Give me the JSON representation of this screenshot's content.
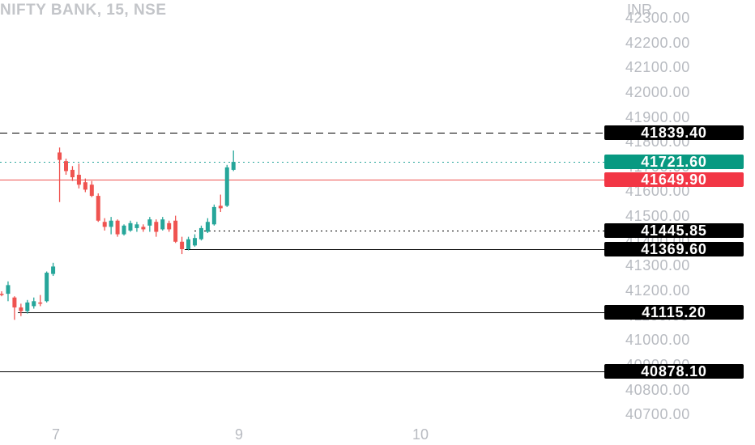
{
  "header": {
    "title": "NIFTY BANK, 15, NSE",
    "currency": "INR"
  },
  "colors": {
    "up": "#26a69a",
    "down": "#ef5350",
    "grid_text": "#b8bbc1",
    "label_dark": "#000000",
    "label_up": "#089981",
    "label_down": "#f23645"
  },
  "chart_data": {
    "type": "candlestick",
    "y_axis": {
      "range": [
        40650,
        42340
      ],
      "ticks": [
        "42300.00",
        "42200.00",
        "42100.00",
        "42000.00",
        "41900.00",
        "41800.00",
        "41700.00",
        "41600.00",
        "41500.00",
        "41400.00",
        "41300.00",
        "41200.00",
        "41100.00",
        "41000.00",
        "40900.00",
        "40800.00",
        "40700.00"
      ]
    },
    "x_axis": {
      "ticks": [
        "7",
        "9",
        "10"
      ]
    },
    "levels": [
      {
        "value": "41839.40",
        "style": "dashed",
        "label_color": "dark"
      },
      {
        "value": "41721.60",
        "style": "dotted-up",
        "label_color": "up"
      },
      {
        "value": "41649.90",
        "style": "solid-down",
        "label_color": "down"
      },
      {
        "value": "41445.85",
        "style": "dotted",
        "label_color": "dark"
      },
      {
        "value": "41369.60",
        "style": "solid",
        "label_color": "dark"
      },
      {
        "value": "41115.20",
        "style": "solid",
        "label_color": "dark"
      },
      {
        "value": "40878.10",
        "style": "solid",
        "label_color": "dark"
      }
    ],
    "candles": [
      {
        "o": 41190,
        "h": 41200,
        "l": 41180,
        "c": 41185
      },
      {
        "o": 41190,
        "h": 41240,
        "l": 41160,
        "c": 41225
      },
      {
        "o": 41175,
        "h": 41180,
        "l": 41085,
        "c": 41135
      },
      {
        "o": 41135,
        "h": 41150,
        "l": 41100,
        "c": 41120
      },
      {
        "o": 41120,
        "h": 41165,
        "l": 41110,
        "c": 41155
      },
      {
        "o": 41140,
        "h": 41175,
        "l": 41130,
        "c": 41160
      },
      {
        "o": 41155,
        "h": 41185,
        "l": 41140,
        "c": 41150
      },
      {
        "o": 41160,
        "h": 41280,
        "l": 41155,
        "c": 41275
      },
      {
        "o": 41270,
        "h": 41315,
        "l": 41262,
        "c": 41300
      },
      {
        "o": 41760,
        "h": 41780,
        "l": 41560,
        "c": 41730
      },
      {
        "o": 41725,
        "h": 41735,
        "l": 41670,
        "c": 41685
      },
      {
        "o": 41690,
        "h": 41705,
        "l": 41645,
        "c": 41660
      },
      {
        "o": 41670,
        "h": 41715,
        "l": 41615,
        "c": 41630
      },
      {
        "o": 41640,
        "h": 41655,
        "l": 41600,
        "c": 41610
      },
      {
        "o": 41630,
        "h": 41645,
        "l": 41580,
        "c": 41585
      },
      {
        "o": 41585,
        "h": 41595,
        "l": 41480,
        "c": 41485
      },
      {
        "o": 41480,
        "h": 41495,
        "l": 41445,
        "c": 41460
      },
      {
        "o": 41460,
        "h": 41500,
        "l": 41430,
        "c": 41485
      },
      {
        "o": 41485,
        "h": 41490,
        "l": 41420,
        "c": 41430
      },
      {
        "o": 41430,
        "h": 41470,
        "l": 41425,
        "c": 41465
      },
      {
        "o": 41445,
        "h": 41485,
        "l": 41440,
        "c": 41475
      },
      {
        "o": 41455,
        "h": 41480,
        "l": 41440,
        "c": 41470
      },
      {
        "o": 41460,
        "h": 41470,
        "l": 41440,
        "c": 41450
      },
      {
        "o": 41465,
        "h": 41500,
        "l": 41440,
        "c": 41490
      },
      {
        "o": 41480,
        "h": 41490,
        "l": 41420,
        "c": 41440
      },
      {
        "o": 41450,
        "h": 41500,
        "l": 41445,
        "c": 41490
      },
      {
        "o": 41475,
        "h": 41485,
        "l": 41440,
        "c": 41450
      },
      {
        "o": 41485,
        "h": 41505,
        "l": 41395,
        "c": 41400
      },
      {
        "o": 41400,
        "h": 41420,
        "l": 41350,
        "c": 41370
      },
      {
        "o": 41370,
        "h": 41420,
        "l": 41365,
        "c": 41410
      },
      {
        "o": 41385,
        "h": 41430,
        "l": 41380,
        "c": 41415
      },
      {
        "o": 41410,
        "h": 41465,
        "l": 41405,
        "c": 41455
      },
      {
        "o": 41440,
        "h": 41495,
        "l": 41435,
        "c": 41480
      },
      {
        "o": 41470,
        "h": 41550,
        "l": 41465,
        "c": 41540
      },
      {
        "o": 41545,
        "h": 41590,
        "l": 41520,
        "c": 41535
      },
      {
        "o": 41545,
        "h": 41710,
        "l": 41540,
        "c": 41700
      },
      {
        "o": 41690,
        "h": 41768,
        "l": 41685,
        "c": 41722
      }
    ]
  }
}
